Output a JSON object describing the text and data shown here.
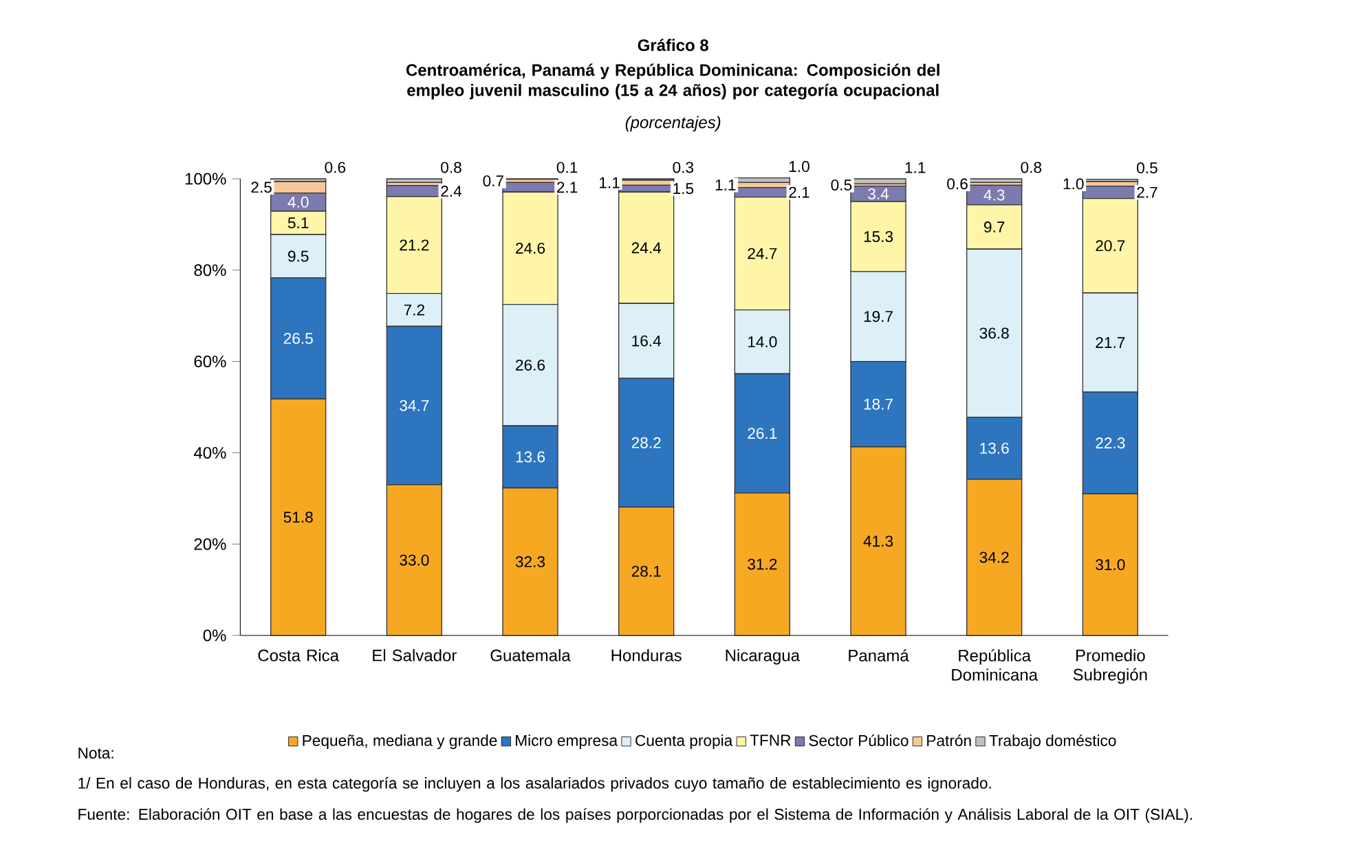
{
  "chart_data": {
    "type": "bar",
    "stacked": true,
    "title": "Gráfico 8",
    "subtitle": "Centroamérica, Panamá y República Dominicana: Composición del empleo juvenil masculino (15 a 24 años) por categoría ocupacional",
    "categories": [
      "Costa Rica",
      "El Salvador",
      "Guatemala",
      "Honduras",
      "Nicaragua",
      "Panamá",
      "República Dominicana",
      "Promedio Subregión"
    ],
    "series": [
      {
        "name": "Pequeña, mediana y grande",
        "color": "#f7a823",
        "values": [
          51.8,
          33.0,
          32.3,
          28.1,
          31.2,
          41.3,
          34.2,
          31.0
        ],
        "value_labels": [
          "51.8",
          "33.0",
          "32.3",
          "28.1",
          "31.2",
          "41.3",
          "34.2",
          "31.0"
        ]
      },
      {
        "name": "Micro empresa",
        "color": "#2e75c0",
        "values": [
          26.5,
          34.7,
          13.6,
          28.2,
          26.1,
          18.7,
          13.6,
          22.3
        ],
        "value_labels": [
          "26.5",
          "34.7",
          "13.6",
          "28.2",
          "26.1",
          "18.7",
          "13.6",
          "22.3"
        ]
      },
      {
        "name": "Cuenta propia",
        "color": "#ddf0f8",
        "values": [
          9.5,
          7.2,
          26.6,
          16.4,
          14.0,
          19.7,
          36.8,
          21.7
        ],
        "value_labels": [
          "9.5",
          "7.2",
          "26.6",
          "16.4",
          "14.0",
          "19.7",
          "36.8",
          "21.7"
        ]
      },
      {
        "name": "TFNR",
        "color": "#fff5a8",
        "values": [
          5.1,
          21.2,
          24.6,
          24.4,
          24.7,
          15.3,
          9.7,
          20.7
        ],
        "value_labels": [
          "5.1",
          "21.2",
          "24.6",
          "24.4",
          "24.7",
          "15.3",
          "9.7",
          "20.7"
        ]
      },
      {
        "name": "Sector Público",
        "color": "#7b7bb0",
        "values": [
          4.0,
          2.4,
          2.1,
          1.5,
          2.1,
          3.4,
          4.3,
          2.7
        ],
        "value_labels": [
          "4.0",
          "2.4",
          "2.1",
          "1.5",
          "2.1",
          "3.4",
          "4.3",
          "2.7"
        ]
      },
      {
        "name": "Patrón",
        "color": "#f8c898",
        "values": [
          2.5,
          0.7,
          0.7,
          1.1,
          1.1,
          0.5,
          0.6,
          1.0
        ],
        "value_labels": [
          "2.5",
          null,
          "0.7",
          "1.1",
          "1.1",
          "0.5",
          "0.6",
          "1.0"
        ]
      },
      {
        "name": "Trabajo doméstico",
        "color": "#c0c0c0",
        "values": [
          0.6,
          0.8,
          0.1,
          0.3,
          1.0,
          1.1,
          0.8,
          0.5
        ],
        "value_labels": [
          "0.6",
          "0.8",
          "0.1",
          "0.3",
          "1.0",
          "1.1",
          "0.8",
          "0.5"
        ]
      }
    ],
    "ylim": [
      0,
      100
    ],
    "yticks": [
      {
        "value": 0,
        "label": "0%"
      },
      {
        "value": 20,
        "label": "20%"
      },
      {
        "value": 40,
        "label": "40%"
      },
      {
        "value": 60,
        "label": "60%"
      },
      {
        "value": 80,
        "label": "80%"
      },
      {
        "value": 100,
        "label": "100%"
      }
    ],
    "grid": false,
    "legend": "bottom",
    "annotations": [
      "(porcentajes)",
      "Nota:",
      "1/ En el caso de Honduras, en esta categoría se incluyen a los asalariados privados cuyo tamaño de establecimiento es ignorado.",
      "Fuente: Elaboración OIT en base a las encuestas de hogares de los países porporcionadas por el Sistema de Información y Análisis Laboral de la OIT (SIAL)."
    ]
  }
}
